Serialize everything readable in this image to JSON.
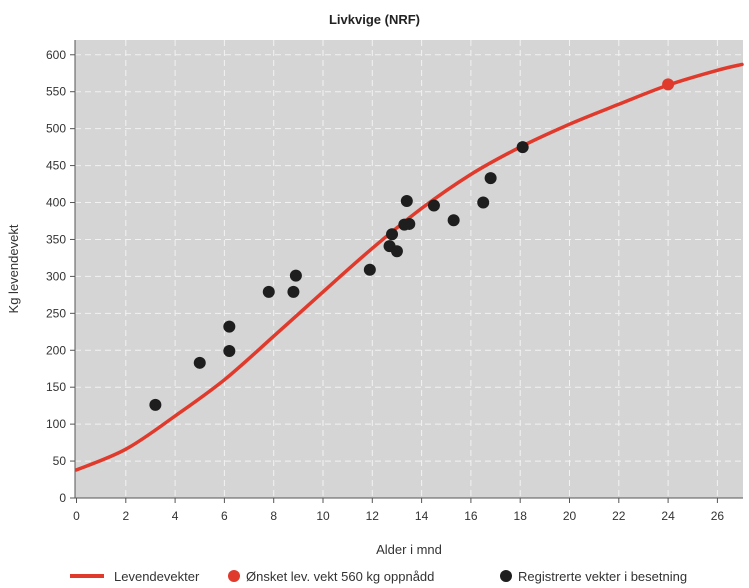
{
  "chart_data": {
    "type": "line",
    "title": "Livkvige (NRF)",
    "xlabel": "Alder i mnd",
    "ylabel": "Kg levendevekt",
    "xlim": [
      0,
      27
    ],
    "ylim": [
      0,
      620
    ],
    "x_ticks": [
      0,
      2,
      4,
      6,
      8,
      10,
      12,
      14,
      16,
      18,
      20,
      22,
      24,
      26
    ],
    "y_ticks": [
      0,
      50,
      100,
      150,
      200,
      250,
      300,
      350,
      400,
      450,
      500,
      550,
      600
    ],
    "grid": true,
    "legend_position": "bottom",
    "colors": {
      "curve": "#e03a2c",
      "target": "#e03a2c",
      "registered": "#1e1e1e",
      "plot_background": "#d5d5d5",
      "grid": "#f2f2f2"
    },
    "series": [
      {
        "name": "Levendevekter",
        "type": "line",
        "x": [
          0,
          2,
          4,
          6,
          8,
          10,
          12,
          14,
          16,
          18,
          20,
          22,
          24,
          26,
          27
        ],
        "y": [
          38,
          66,
          111,
          160,
          219,
          279,
          338,
          392,
          438,
          475,
          506,
          533,
          559,
          579,
          587
        ]
      },
      {
        "name": "Ønsket lev. vekt 560 kg oppnådd",
        "type": "scatter",
        "x": [
          24
        ],
        "y": [
          560
        ]
      },
      {
        "name": "Registrerte vekter i besetning",
        "type": "scatter",
        "x": [
          3.2,
          5.0,
          6.2,
          6.2,
          7.8,
          8.8,
          8.9,
          11.9,
          12.7,
          12.8,
          13.0,
          13.3,
          13.4,
          13.5,
          14.5,
          15.3,
          16.5,
          16.8,
          18.1
        ],
        "y": [
          126,
          183,
          199,
          232,
          279,
          279,
          301,
          309,
          341,
          357,
          334,
          370,
          402,
          371,
          396,
          376,
          400,
          433,
          475
        ]
      }
    ]
  }
}
